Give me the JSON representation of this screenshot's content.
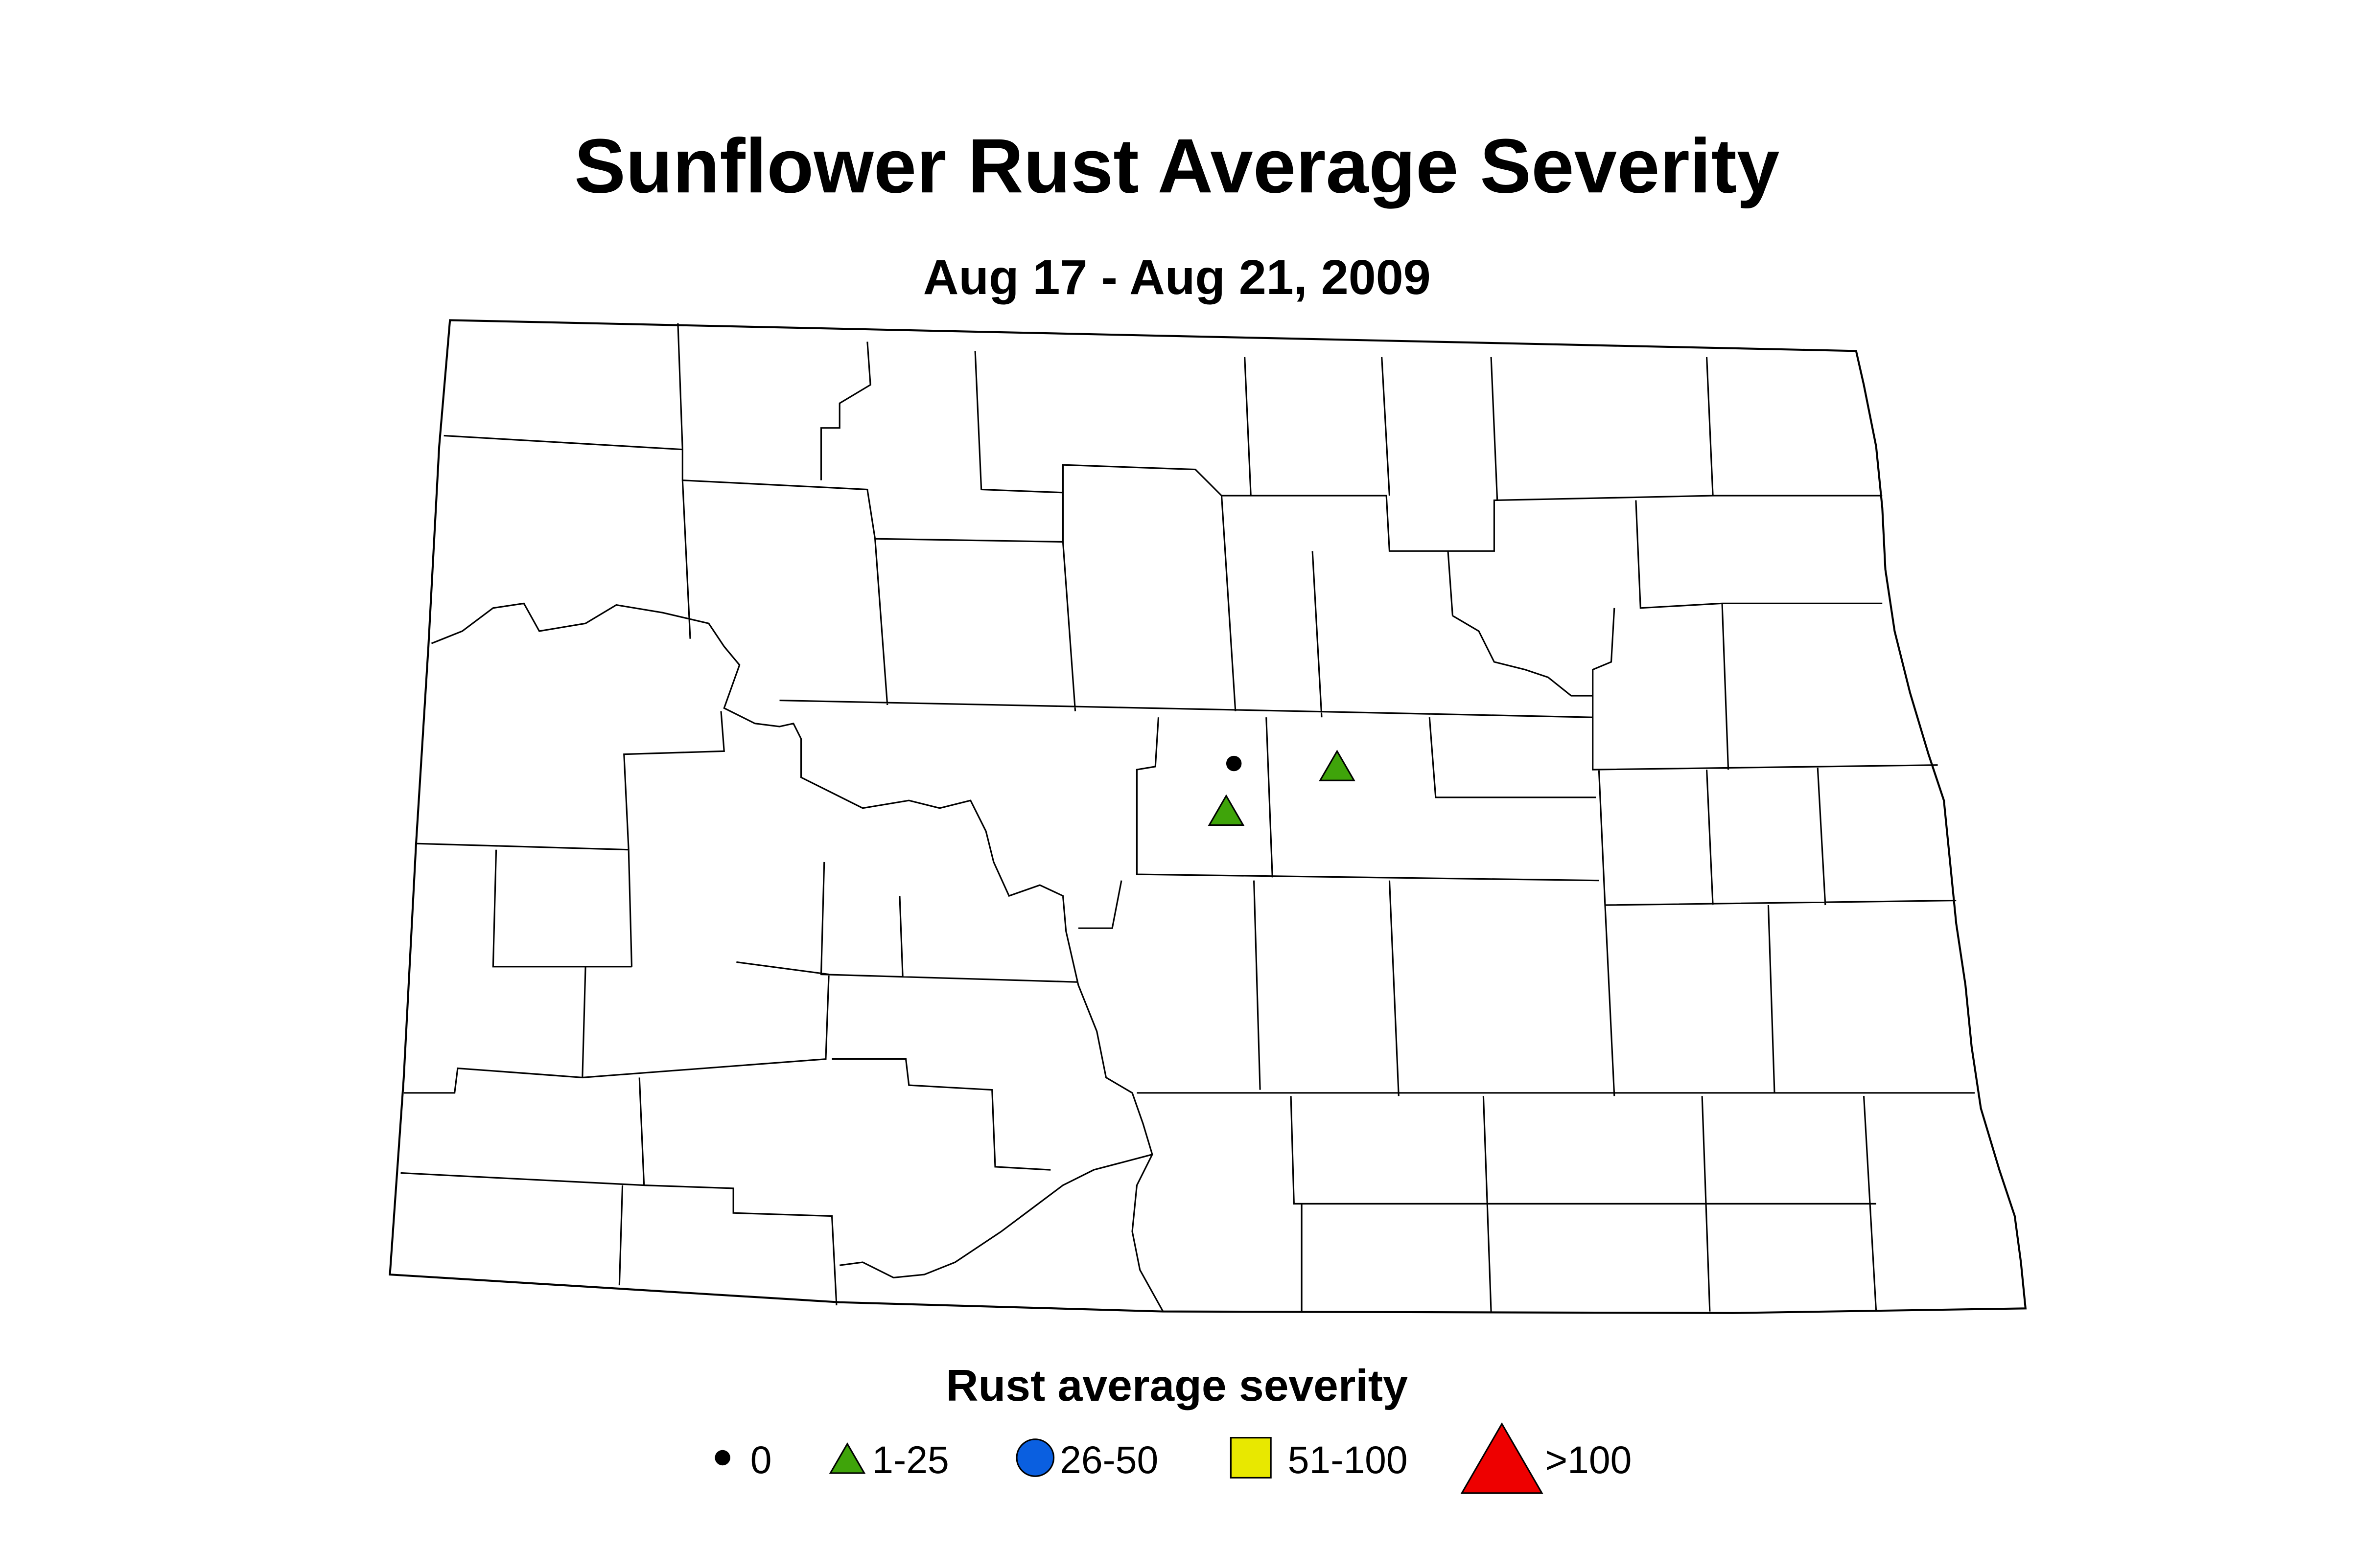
{
  "title": "Sunflower Rust Average Severity",
  "subtitle": "Aug 17 - Aug 21, 2009",
  "legend": {
    "title": "Rust average severity",
    "items": [
      "0",
      "1-25",
      "26-50",
      "51-100",
      ">100"
    ]
  }
}
